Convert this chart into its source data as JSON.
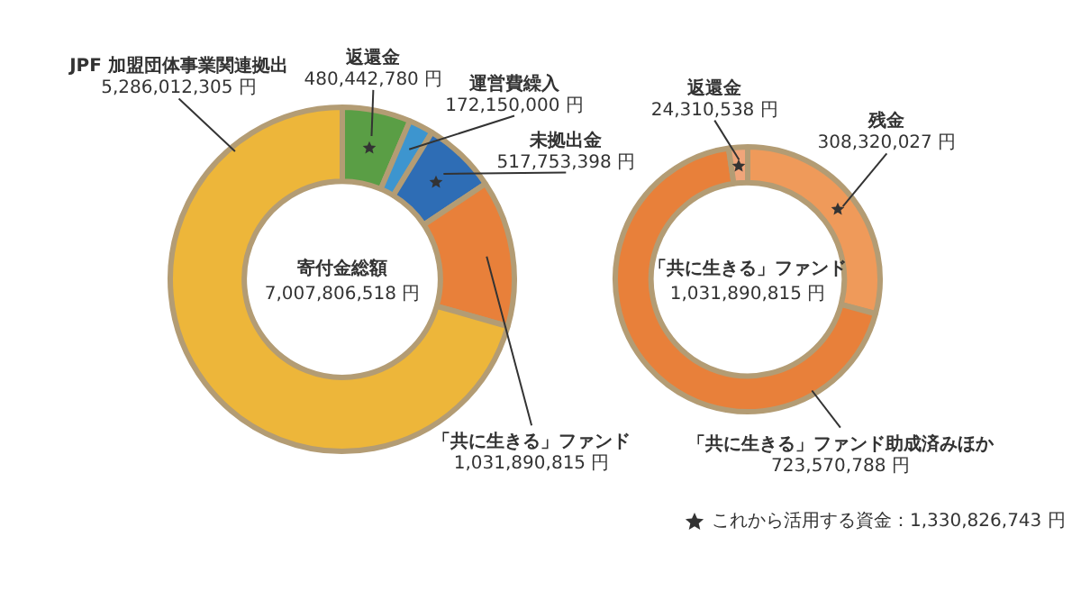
{
  "chart_data": [
    {
      "type": "donut",
      "categories": [
        "返還金",
        "運営費繰入",
        "未拠出金",
        "「共に生きる」ファンド",
        "JPF 加盟団体事業関連拠出"
      ],
      "values": [
        480442780,
        172150000,
        517753398,
        1031890815,
        5286012305
      ],
      "colors": [
        "#5a9e45",
        "#3d95cf",
        "#2e6db5",
        "#e8803a",
        "#edb63a"
      ],
      "value_labels": [
        "480,442,780 円",
        "172,150,000 円",
        "517,753,398 円",
        "1,031,890,815 円",
        "5,286,012,305 円"
      ],
      "annotations": [
        "寄付金総額",
        "7,007,806,518 円"
      ]
    },
    {
      "type": "donut",
      "categories": [
        "残金",
        "「共に生きる」ファンド助成済みほか",
        "返還金"
      ],
      "values": [
        308320027,
        723570788,
        24310538
      ],
      "colors": [
        "#ef9a5a",
        "#e8803a",
        "#f0a57a"
      ],
      "value_labels": [
        "308,320,027 円",
        "723,570,788 円",
        "24,310,538 円"
      ],
      "annotations": [
        "「共に生きる」ファンド",
        "1,031,890,815 円",
        "これから活用する資金：1,330,826,743 円"
      ]
    }
  ]
}
